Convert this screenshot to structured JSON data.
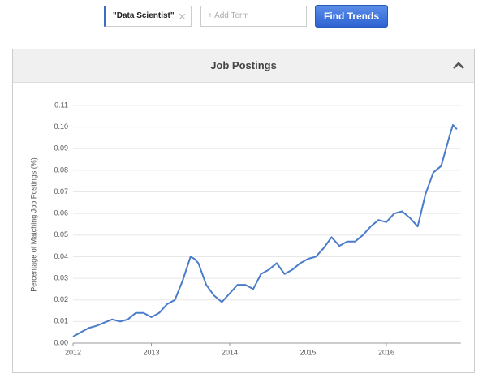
{
  "search": {
    "term": "\"Data Scientist\"",
    "add_term": "+ Add Term",
    "button": "Find Trends"
  },
  "chart_data": {
    "type": "line",
    "title": "Job Postings",
    "y_label": "Percentage of Matching Job Postings (%)",
    "x": [
      2012.0,
      2012.1,
      2012.2,
      2012.3,
      2012.4,
      2012.5,
      2012.6,
      2012.7,
      2012.8,
      2012.9,
      2013.0,
      2013.1,
      2013.2,
      2013.3,
      2013.4,
      2013.5,
      2013.55,
      2013.6,
      2013.7,
      2013.8,
      2013.9,
      2014.0,
      2014.1,
      2014.2,
      2014.3,
      2014.4,
      2014.5,
      2014.6,
      2014.7,
      2014.8,
      2014.9,
      2015.0,
      2015.1,
      2015.2,
      2015.3,
      2015.4,
      2015.5,
      2015.6,
      2015.7,
      2015.8,
      2015.9,
      2016.0,
      2016.1,
      2016.2,
      2016.3,
      2016.4,
      2016.5,
      2016.6,
      2016.7,
      2016.8,
      2016.85,
      2016.9
    ],
    "series": [
      {
        "name": "\"Data Scientist\"",
        "color": "#4a7cc9",
        "values": [
          0.003,
          0.005,
          0.007,
          0.008,
          0.0095,
          0.011,
          0.01,
          0.011,
          0.014,
          0.014,
          0.012,
          0.014,
          0.018,
          0.02,
          0.029,
          0.04,
          0.039,
          0.037,
          0.027,
          0.022,
          0.019,
          0.023,
          0.027,
          0.027,
          0.025,
          0.032,
          0.034,
          0.037,
          0.032,
          0.034,
          0.037,
          0.039,
          0.04,
          0.044,
          0.049,
          0.045,
          0.047,
          0.047,
          0.05,
          0.054,
          0.057,
          0.056,
          0.06,
          0.061,
          0.058,
          0.054,
          0.069,
          0.079,
          0.082,
          0.095,
          0.101,
          0.099
        ]
      }
    ],
    "xlim": [
      2012,
      2016.95
    ],
    "xticks": [
      2012,
      2013,
      2014,
      2015,
      2016
    ],
    "ylim": [
      0,
      0.11
    ],
    "yticks": [
      {
        "value": 0,
        "label": "0.00"
      },
      0.01,
      0.02,
      0.03,
      0.04,
      0.05,
      0.06,
      0.07,
      0.08,
      0.09,
      {
        "value": 0.1,
        "label": "0.10"
      },
      0.11
    ],
    "grid": true
  }
}
